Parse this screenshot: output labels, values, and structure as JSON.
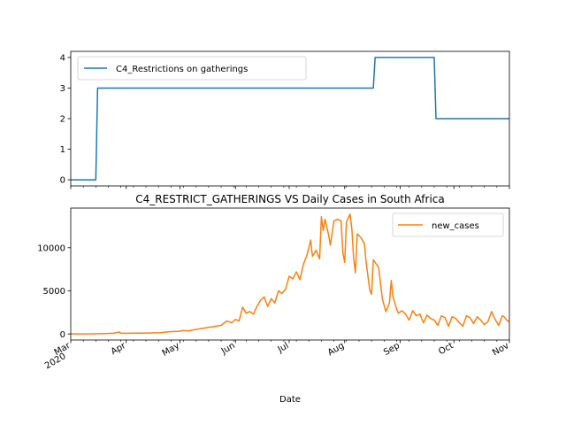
{
  "colors": {
    "c4": "#1f77b4",
    "cases": "#ff7f0e"
  },
  "chart_data": [
    {
      "type": "line",
      "title": "",
      "xlabel": "",
      "ylabel": "",
      "xlim": [
        "2020-03-01",
        "2020-11-01"
      ],
      "ylim": [
        -0.2,
        4.2
      ],
      "yticks": [
        0,
        1,
        2,
        3,
        4
      ],
      "grid": false,
      "legend": "top-left",
      "series": [
        {
          "name": "C4_Restrictions on gatherings",
          "color": "#1f77b4",
          "points": [
            [
              "2020-03-01",
              0
            ],
            [
              "2020-03-15",
              0
            ],
            [
              "2020-03-16",
              3
            ],
            [
              "2020-08-17",
              3
            ],
            [
              "2020-08-18",
              4
            ],
            [
              "2020-09-20",
              4
            ],
            [
              "2020-09-21",
              2
            ],
            [
              "2020-11-01",
              2
            ]
          ]
        }
      ]
    },
    {
      "type": "line",
      "title": "C4_RESTRICT_GATHERINGS VS Daily Cases in South Africa",
      "xlabel": "Date",
      "ylabel": "",
      "xlim": [
        "2020-03-01",
        "2020-11-01"
      ],
      "ylim": [
        -700,
        14600
      ],
      "yticks": [
        0,
        5000,
        10000
      ],
      "xticks": [
        {
          "date": "2020-03-01",
          "label": "Mar",
          "sublabel": "2020"
        },
        {
          "date": "2020-04-01",
          "label": "Apr"
        },
        {
          "date": "2020-05-01",
          "label": "May"
        },
        {
          "date": "2020-06-01",
          "label": "Jun"
        },
        {
          "date": "2020-07-01",
          "label": "Jul"
        },
        {
          "date": "2020-08-01",
          "label": "Aug"
        },
        {
          "date": "2020-09-01",
          "label": "Sep"
        },
        {
          "date": "2020-10-01",
          "label": "Oct"
        },
        {
          "date": "2020-11-01",
          "label": "Nov"
        }
      ],
      "grid": false,
      "legend": "top-right",
      "series": [
        {
          "name": "new_cases",
          "color": "#ff7f0e",
          "points": [
            [
              "2020-03-01",
              0
            ],
            [
              "2020-03-10",
              2
            ],
            [
              "2020-03-20",
              50
            ],
            [
              "2020-03-25",
              80
            ],
            [
              "2020-03-28",
              230
            ],
            [
              "2020-03-29",
              100
            ],
            [
              "2020-04-01",
              70
            ],
            [
              "2020-04-05",
              90
            ],
            [
              "2020-04-10",
              100
            ],
            [
              "2020-04-15",
              120
            ],
            [
              "2020-04-20",
              150
            ],
            [
              "2020-04-25",
              260
            ],
            [
              "2020-04-30",
              300
            ],
            [
              "2020-05-03",
              400
            ],
            [
              "2020-05-06",
              350
            ],
            [
              "2020-05-09",
              500
            ],
            [
              "2020-05-12",
              600
            ],
            [
              "2020-05-15",
              700
            ],
            [
              "2020-05-18",
              800
            ],
            [
              "2020-05-21",
              900
            ],
            [
              "2020-05-24",
              1000
            ],
            [
              "2020-05-27",
              1500
            ],
            [
              "2020-05-30",
              1300
            ],
            [
              "2020-06-01",
              1700
            ],
            [
              "2020-06-03",
              1500
            ],
            [
              "2020-06-05",
              3100
            ],
            [
              "2020-06-07",
              2400
            ],
            [
              "2020-06-09",
              2600
            ],
            [
              "2020-06-11",
              2300
            ],
            [
              "2020-06-13",
              3200
            ],
            [
              "2020-06-15",
              3900
            ],
            [
              "2020-06-17",
              4300
            ],
            [
              "2020-06-19",
              3200
            ],
            [
              "2020-06-21",
              4100
            ],
            [
              "2020-06-23",
              3600
            ],
            [
              "2020-06-25",
              5000
            ],
            [
              "2020-06-27",
              4700
            ],
            [
              "2020-06-29",
              5200
            ],
            [
              "2020-07-01",
              6700
            ],
            [
              "2020-07-03",
              6400
            ],
            [
              "2020-07-05",
              7200
            ],
            [
              "2020-07-07",
              6300
            ],
            [
              "2020-07-09",
              8100
            ],
            [
              "2020-07-11",
              9200
            ],
            [
              "2020-07-13",
              10900
            ],
            [
              "2020-07-14",
              9000
            ],
            [
              "2020-07-16",
              9700
            ],
            [
              "2020-07-18",
              8700
            ],
            [
              "2020-07-19",
              13600
            ],
            [
              "2020-07-20",
              12000
            ],
            [
              "2020-07-21",
              13300
            ],
            [
              "2020-07-23",
              11500
            ],
            [
              "2020-07-24",
              10300
            ],
            [
              "2020-07-26",
              13100
            ],
            [
              "2020-07-28",
              13300
            ],
            [
              "2020-07-30",
              13100
            ],
            [
              "2020-07-31",
              9400
            ],
            [
              "2020-08-01",
              8300
            ],
            [
              "2020-08-02",
              13000
            ],
            [
              "2020-08-04",
              13900
            ],
            [
              "2020-08-05",
              12200
            ],
            [
              "2020-08-06",
              8800
            ],
            [
              "2020-08-07",
              7100
            ],
            [
              "2020-08-08",
              11600
            ],
            [
              "2020-08-10",
              11200
            ],
            [
              "2020-08-12",
              10500
            ],
            [
              "2020-08-13",
              8300
            ],
            [
              "2020-08-15",
              5100
            ],
            [
              "2020-08-16",
              4600
            ],
            [
              "2020-08-17",
              8600
            ],
            [
              "2020-08-18",
              8300
            ],
            [
              "2020-08-20",
              7700
            ],
            [
              "2020-08-22",
              4100
            ],
            [
              "2020-08-24",
              2600
            ],
            [
              "2020-08-26",
              3600
            ],
            [
              "2020-08-27",
              6200
            ],
            [
              "2020-08-28",
              4300
            ],
            [
              "2020-08-30",
              2900
            ],
            [
              "2020-08-31",
              2400
            ],
            [
              "2020-09-02",
              2700
            ],
            [
              "2020-09-04",
              2300
            ],
            [
              "2020-09-06",
              1600
            ],
            [
              "2020-09-08",
              2700
            ],
            [
              "2020-09-10",
              2100
            ],
            [
              "2020-09-12",
              2300
            ],
            [
              "2020-09-14",
              1300
            ],
            [
              "2020-09-16",
              2200
            ],
            [
              "2020-09-18",
              1800
            ],
            [
              "2020-09-20",
              1600
            ],
            [
              "2020-09-22",
              1000
            ],
            [
              "2020-09-24",
              2100
            ],
            [
              "2020-09-26",
              1900
            ],
            [
              "2020-09-28",
              900
            ],
            [
              "2020-09-30",
              2000
            ],
            [
              "2020-10-02",
              1800
            ],
            [
              "2020-10-04",
              1300
            ],
            [
              "2020-10-06",
              900
            ],
            [
              "2020-10-08",
              2100
            ],
            [
              "2020-10-10",
              1900
            ],
            [
              "2020-10-12",
              1200
            ],
            [
              "2020-10-14",
              2000
            ],
            [
              "2020-10-16",
              1600
            ],
            [
              "2020-10-18",
              1100
            ],
            [
              "2020-10-20",
              1400
            ],
            [
              "2020-10-22",
              2600
            ],
            [
              "2020-10-24",
              1700
            ],
            [
              "2020-10-26",
              1000
            ],
            [
              "2020-10-28",
              2100
            ],
            [
              "2020-10-29",
              2000
            ],
            [
              "2020-10-31",
              1500
            ],
            [
              "2020-11-01",
              1500
            ]
          ]
        }
      ]
    }
  ]
}
